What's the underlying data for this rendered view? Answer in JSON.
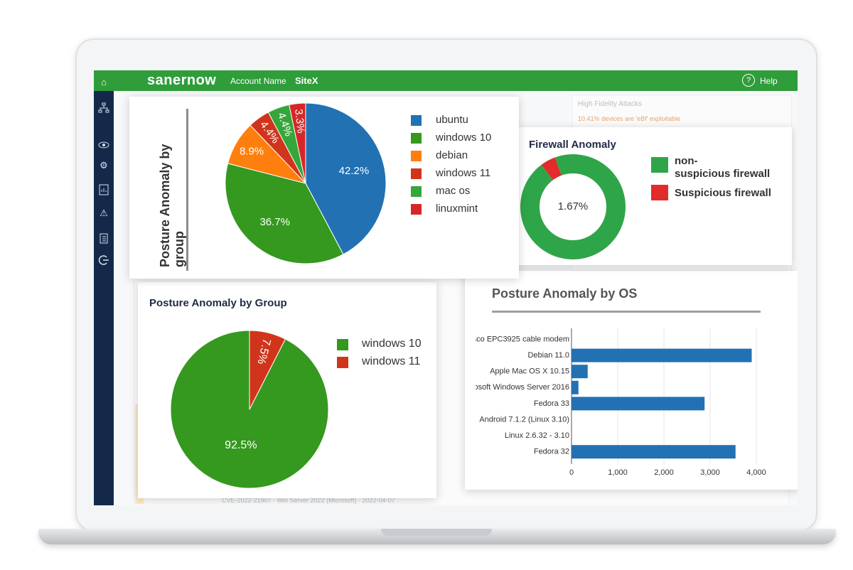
{
  "topbar": {
    "brand": "sanernow",
    "account": "Account Name",
    "site": "SiteX",
    "help_label": "Help",
    "help_icon": "question-circle-icon"
  },
  "sidebar": {
    "icons": [
      "home-icon",
      "network-icon",
      "eye-icon",
      "gear-icon",
      "report-icon",
      "warning-icon",
      "clipboard-icon",
      "logout-icon"
    ]
  },
  "background": {
    "hfa_title": "High Fidelity Attacks",
    "hfa_sub": "10.41% devices are 'eBf' exploitable",
    "bottom_text": "CVE-2022-21907  · Win Server 2022 (Microsoft)  · 2022-04-07"
  },
  "colors": {
    "green_top": "#2f9d3a",
    "sidebar": "#14294a",
    "blue": "#2271b3",
    "green": "#3a9b28",
    "orange": "#ff7f0e",
    "red": "#d62728"
  },
  "card1": {
    "title": "Posture Anomaly by group",
    "chart_data": {
      "type": "pie",
      "categories": [
        "ubuntu",
        "windows 10",
        "debian",
        "windows 11",
        "mac os",
        "linuxmint"
      ],
      "values": [
        42.2,
        36.7,
        8.9,
        4.4,
        4.4,
        3.3
      ],
      "slice_order": [
        "ubuntu",
        "windows 10",
        "debian",
        "windows 11",
        "mac os",
        "linuxmint"
      ],
      "labels": [
        "42.2%",
        "36.7%",
        "8.9%",
        "4.4%",
        "4.4%",
        "3.3%"
      ],
      "colors": [
        "#2271b3",
        "#35981f",
        "#ff7f0e",
        "#d0351c",
        "#35a63a",
        "#d62728"
      ]
    }
  },
  "card2": {
    "title": "Firewall Anomaly",
    "chart_data": {
      "type": "pie",
      "donut": true,
      "categories": [
        "non-suspicious firewall",
        "Suspicious firewall"
      ],
      "values": [
        98.33,
        1.67
      ],
      "center_label": "1.67%",
      "colors": [
        "#2fa54a",
        "#e22b2b"
      ]
    },
    "legend": [
      {
        "label_line1": "non-",
        "label_line2": "suspicious firewall",
        "color": "#2fa54a"
      },
      {
        "label_line1": "Suspicious firewall",
        "label_line2": "",
        "color": "#e22b2b"
      }
    ]
  },
  "card3": {
    "title": "Posture Anomaly by Group",
    "chart_data": {
      "type": "pie",
      "categories": [
        "windows 10",
        "windows 11"
      ],
      "values": [
        92.5,
        7.5
      ],
      "labels": [
        "92.5%",
        "7.5%"
      ],
      "colors": [
        "#35981f",
        "#d0351c"
      ]
    }
  },
  "card4": {
    "title": "Posture Anomaly by OS",
    "chart_data": {
      "type": "bar",
      "orientation": "horizontal",
      "categories": [
        "isco EPC3925 cable modem",
        "Debian 11.0",
        "Apple Mac OS X 10.15",
        "osoft Windows Server 2016",
        "Fedora 33",
        "Android 7.1.2 (Linux 3.10)",
        "Linux 2.6.32 - 3.10",
        "Fedora 32"
      ],
      "values": [
        0,
        3900,
        350,
        150,
        2880,
        0,
        0,
        3550
      ],
      "xlim": [
        0,
        4000
      ],
      "xticks": [
        0,
        1000,
        2000,
        3000,
        4000
      ],
      "xtick_labels": [
        "0",
        "1,000",
        "2,000",
        "3,000",
        "4,000"
      ],
      "grid": true,
      "color": "#2271b3"
    }
  }
}
